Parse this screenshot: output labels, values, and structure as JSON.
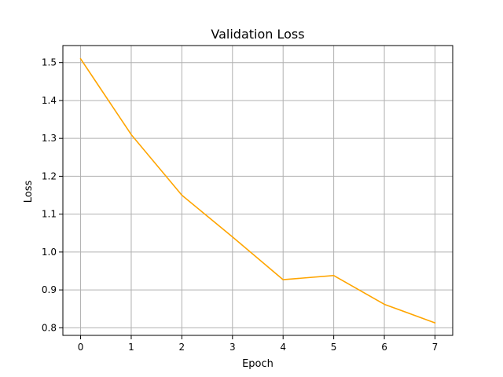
{
  "chart_data": {
    "type": "line",
    "title": "Validation Loss",
    "xlabel": "Epoch",
    "ylabel": "Loss",
    "x": [
      0,
      1,
      2,
      3,
      4,
      5,
      6,
      7
    ],
    "series": [
      {
        "values": [
          1.51,
          1.31,
          1.15,
          1.04,
          0.927,
          0.938,
          0.862,
          0.813
        ],
        "color": "#ffa500"
      }
    ],
    "xlim": [
      -0.35,
      7.35
    ],
    "ylim": [
      0.78,
      1.545
    ],
    "xticks": [
      0,
      1,
      2,
      3,
      4,
      5,
      6,
      7
    ],
    "yticks": [
      0.8,
      0.9,
      1.0,
      1.1,
      1.2,
      1.3,
      1.4,
      1.5
    ],
    "xtick_labels": [
      "0",
      "1",
      "2",
      "3",
      "4",
      "5",
      "6",
      "7"
    ],
    "ytick_labels": [
      "0.8",
      "0.9",
      "1.0",
      "1.1",
      "1.2",
      "1.3",
      "1.4",
      "1.5"
    ],
    "grid": true,
    "grid_color": "#b0b0b0",
    "legend": "none"
  }
}
